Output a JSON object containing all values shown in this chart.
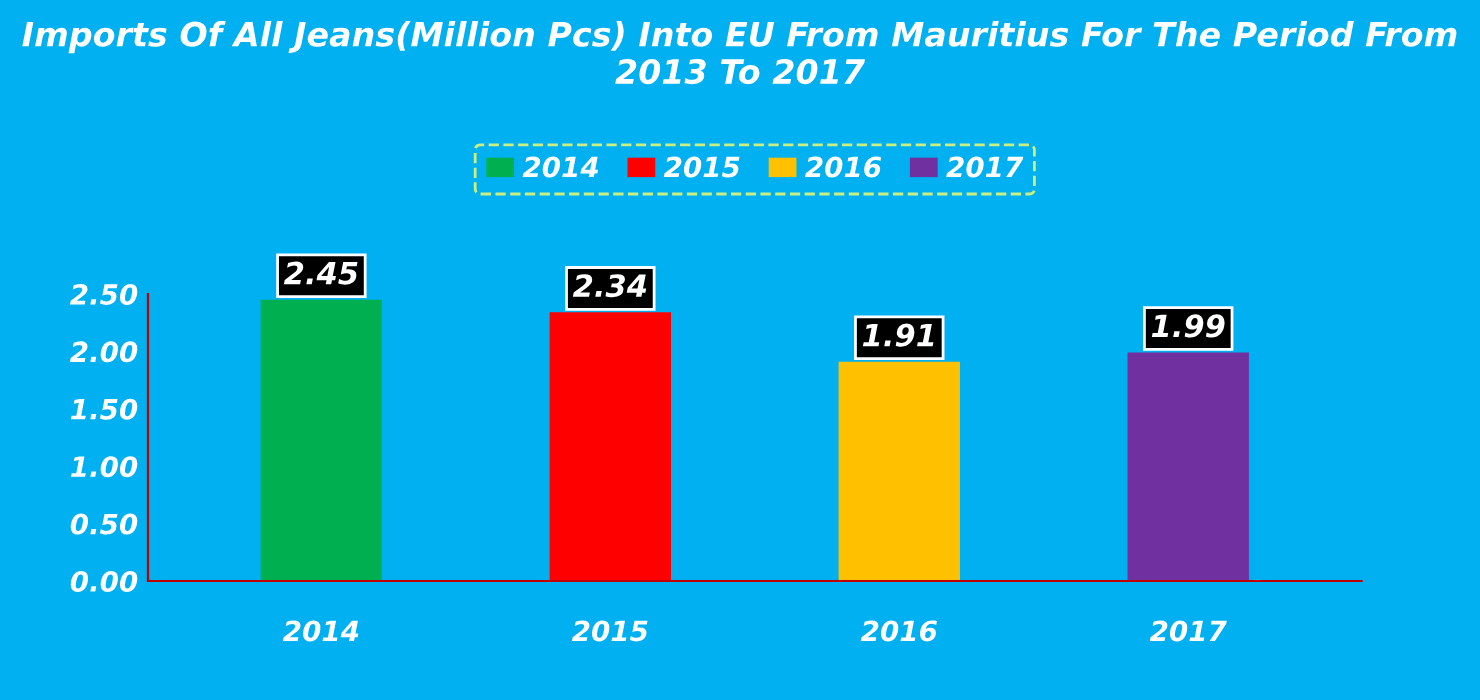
{
  "chart_data": {
    "type": "bar",
    "title": "Imports Of All Jeans(Million Pcs) Into EU From Mauritius For The Period From 2013 To 2017",
    "categories": [
      "2014",
      "2015",
      "2016",
      "2017"
    ],
    "series": [
      {
        "name": "2014",
        "color": "#00b050",
        "values": [
          2.45,
          null,
          null,
          null
        ]
      },
      {
        "name": "2015",
        "color": "#ff0000",
        "values": [
          null,
          2.34,
          null,
          null
        ]
      },
      {
        "name": "2016",
        "color": "#ffc000",
        "values": [
          null,
          null,
          1.91,
          null
        ]
      },
      {
        "name": "2017",
        "color": "#7030a0",
        "values": [
          null,
          null,
          null,
          1.99
        ]
      }
    ],
    "ylim": [
      0,
      2.5
    ],
    "yticks": [
      {
        "value": 0,
        "label": "0.00"
      },
      {
        "value": 0.5,
        "label": "0.50"
      },
      {
        "value": 1,
        "label": "1.00"
      },
      {
        "value": 1.5,
        "label": "1.50"
      },
      {
        "value": 2,
        "label": "2.00"
      },
      {
        "value": 2.5,
        "label": "2.50"
      }
    ],
    "data_labels": true,
    "legend": "top",
    "grid": false
  }
}
